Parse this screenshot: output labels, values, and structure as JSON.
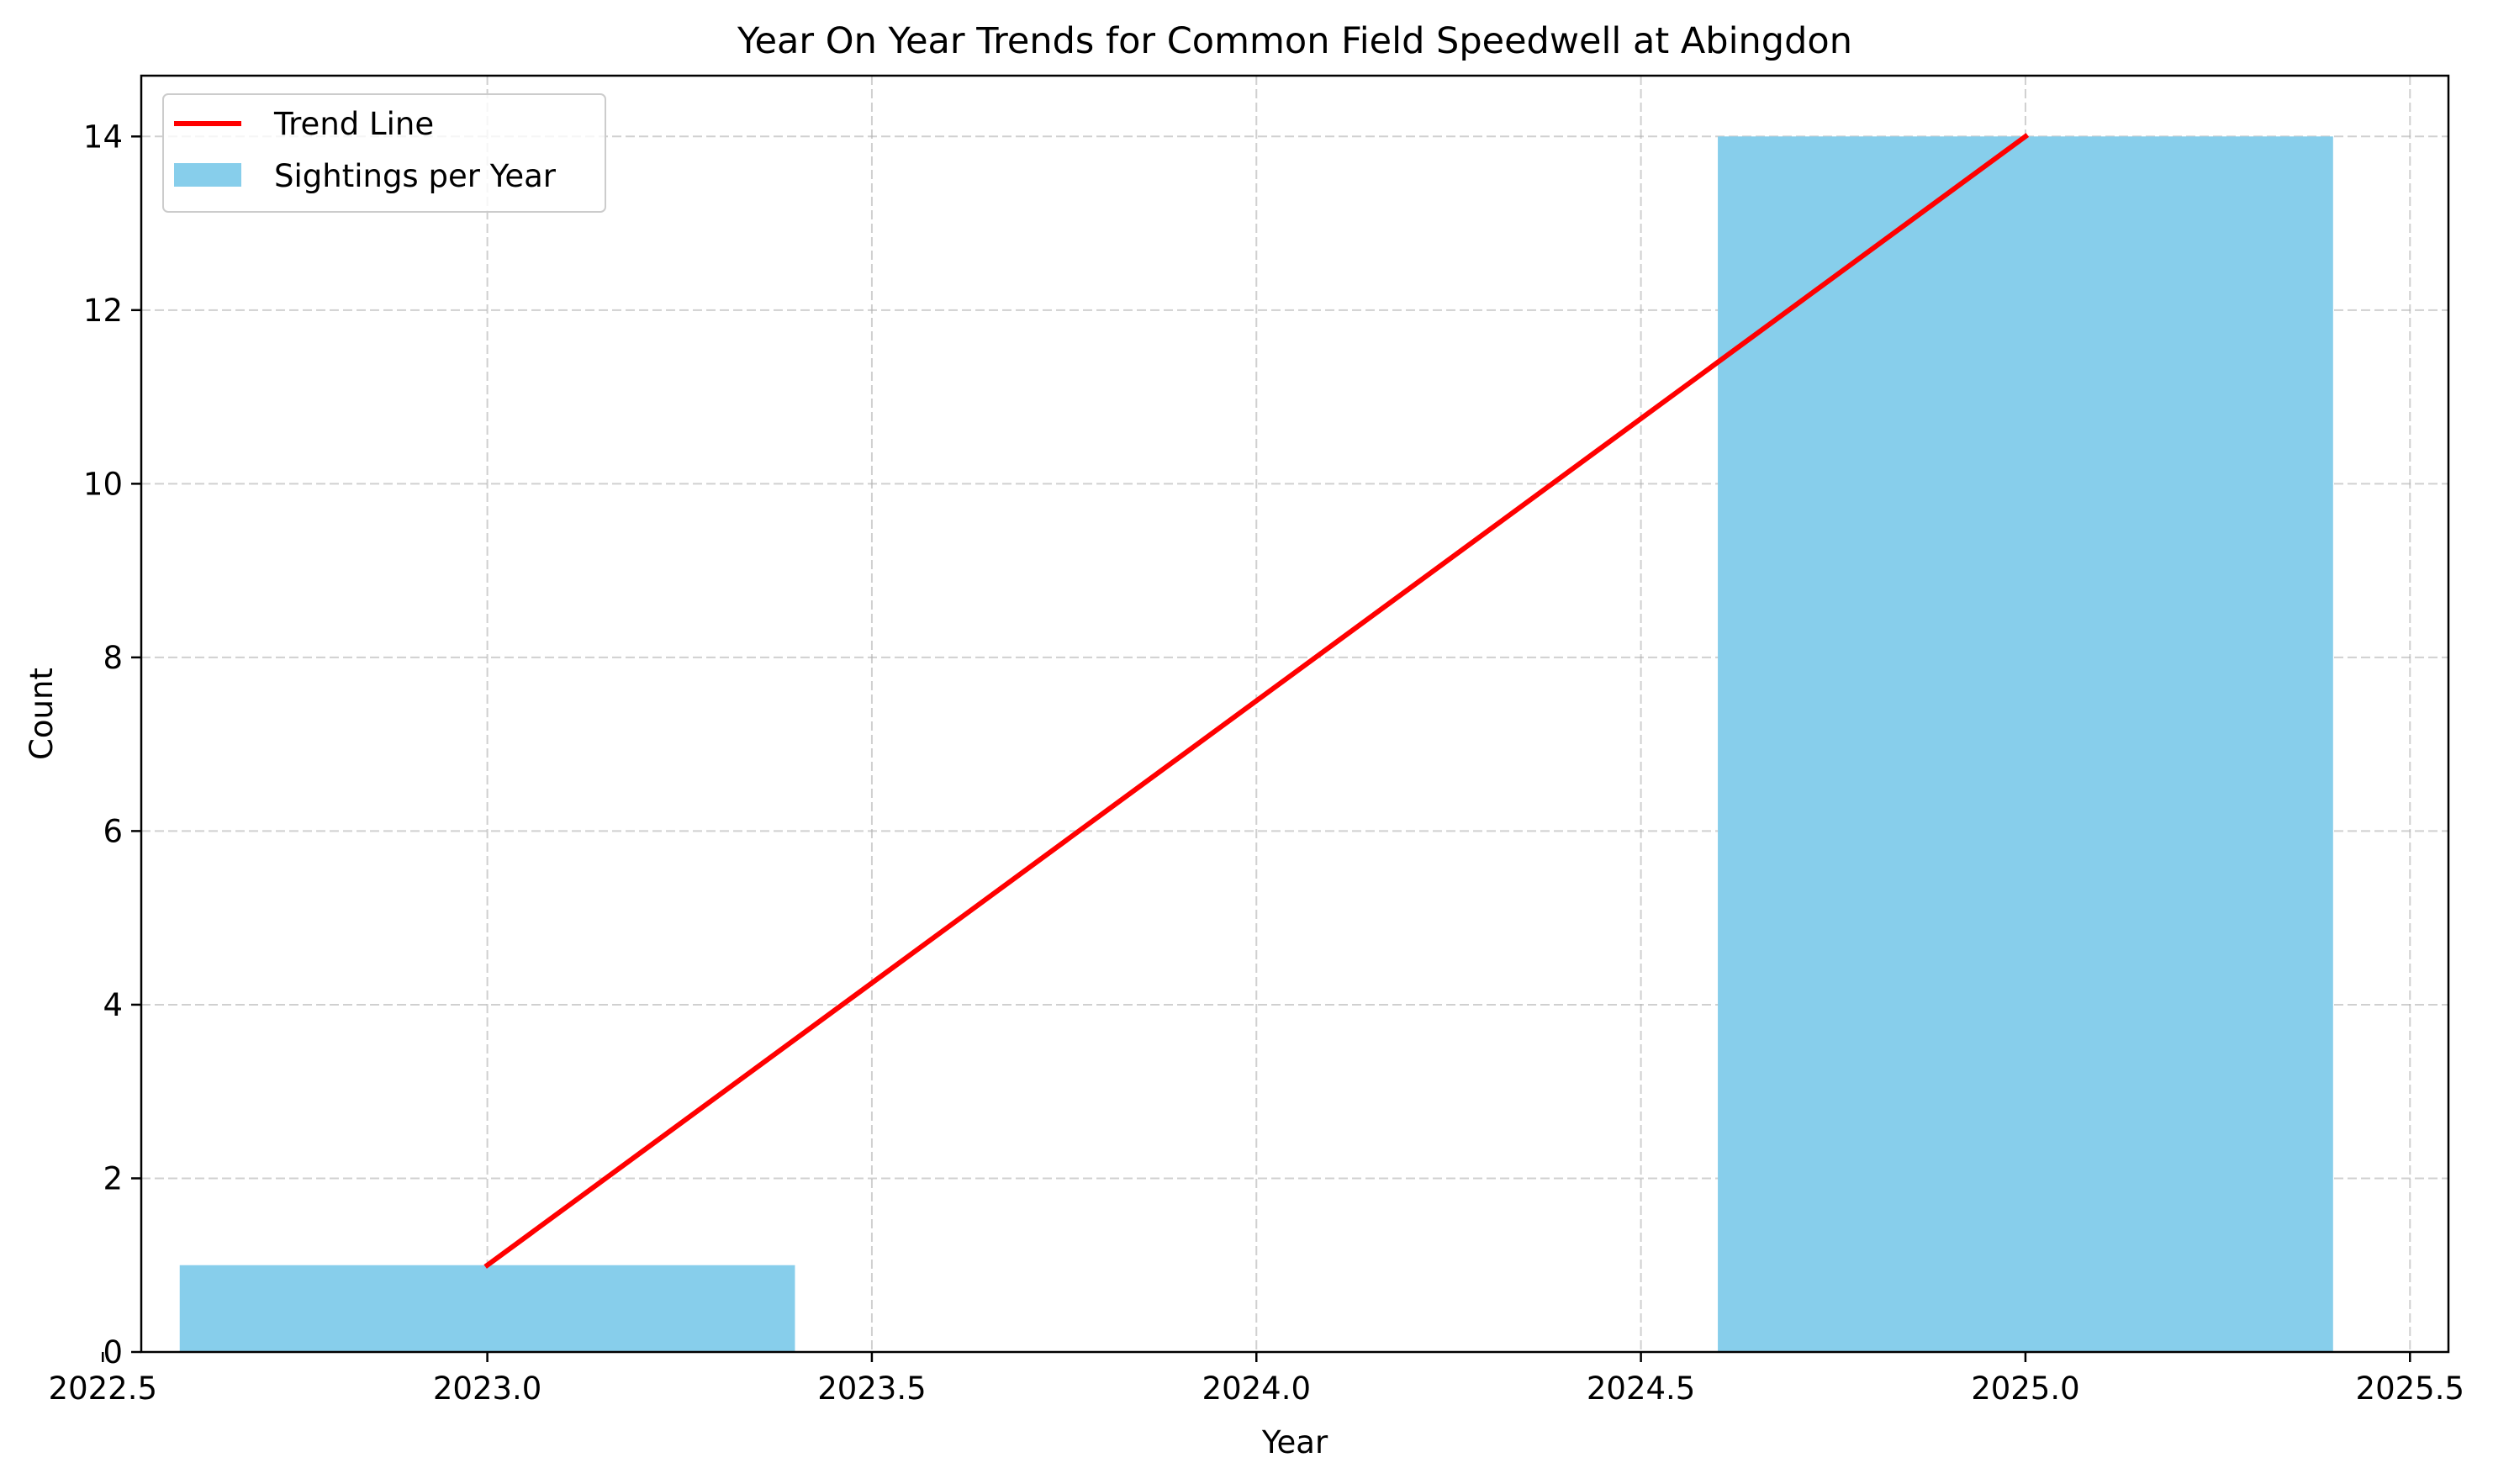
{
  "chart_data": {
    "type": "bar",
    "title": "Year On Year Trends for Common Field Speedwell at Abingdon",
    "xlabel": "Year",
    "ylabel": "Count",
    "xlim": [
      2022.55,
      2025.55
    ],
    "ylim": [
      0,
      14.7
    ],
    "x_ticks": [
      2022.5,
      2023.0,
      2023.5,
      2024.0,
      2024.5,
      2025.0,
      2025.5
    ],
    "x_tick_labels": [
      "2022.5",
      "2023.0",
      "2023.5",
      "2024.0",
      "2024.5",
      "2025.0",
      "2025.5"
    ],
    "y_ticks": [
      0,
      2,
      4,
      6,
      8,
      10,
      12,
      14
    ],
    "y_tick_labels": [
      "0",
      "2",
      "4",
      "6",
      "8",
      "10",
      "12",
      "14"
    ],
    "grid": true,
    "legend_position": "top-left",
    "bar_width": 0.8,
    "series": [
      {
        "name": "Sightings per Year",
        "kind": "bar",
        "color": "#87CEEB",
        "x": [
          2023,
          2025
        ],
        "values": [
          1,
          14
        ]
      },
      {
        "name": "Trend Line",
        "kind": "line",
        "color": "#FF0000",
        "x": [
          2023,
          2025
        ],
        "values": [
          1,
          14
        ]
      }
    ],
    "legend": [
      {
        "label": "Trend Line",
        "kind": "line",
        "color": "#FF0000"
      },
      {
        "label": "Sightings per Year",
        "kind": "bar",
        "color": "#87CEEB"
      }
    ]
  }
}
